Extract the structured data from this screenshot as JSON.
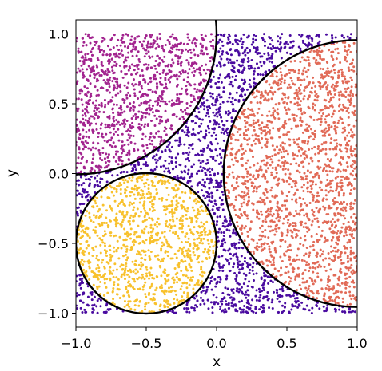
{
  "chart_data": {
    "type": "scatter",
    "title": "",
    "xlabel": "x",
    "ylabel": "y",
    "xlim": [
      -1.0,
      1.0
    ],
    "ylim": [
      -1.1,
      1.1
    ],
    "x_ticks": [
      -1.0,
      -0.5,
      0.0,
      0.5,
      1.0
    ],
    "x_tick_labels": [
      "−1.0",
      "−0.5",
      "0.0",
      "0.5",
      "1.0"
    ],
    "y_ticks": [
      -1.0,
      -0.5,
      0.0,
      0.5,
      1.0
    ],
    "y_tick_labels": [
      "−1.0",
      "−0.5",
      "0.0",
      "0.5",
      "1.0"
    ],
    "grid": false,
    "point_domain": {
      "x": [
        -1.0,
        1.0
      ],
      "y": [
        -1.0,
        1.0
      ]
    },
    "regions": [
      {
        "shape": "circle",
        "center": [
          -0.5,
          -0.5
        ],
        "radius": 0.5,
        "color": "#f8c12d"
      },
      {
        "shape": "circle",
        "center": [
          1.0,
          0.0
        ],
        "radius": 0.95,
        "color": "#e16a57"
      },
      {
        "shape": "circle",
        "center": [
          -1.0,
          1.0
        ],
        "radius": 1.0,
        "color": "#a2248f"
      }
    ],
    "background_color": "#4a0ba0",
    "boundary_circles": [
      {
        "center": [
          -1.0,
          1.0
        ],
        "radius": 1.0
      },
      {
        "center": [
          -0.5,
          -0.5
        ],
        "radius": 0.5
      },
      {
        "center": [
          1.0,
          0.0
        ],
        "radius": 0.95
      }
    ]
  }
}
